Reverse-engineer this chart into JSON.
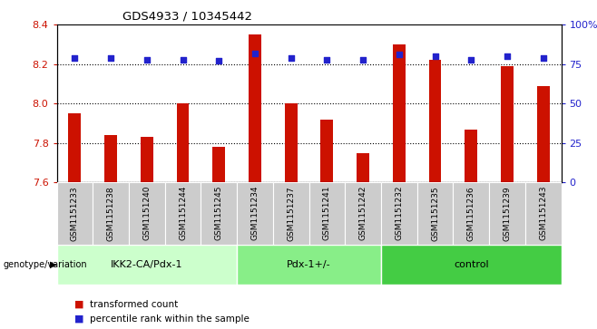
{
  "title": "GDS4933 / 10345442",
  "samples": [
    "GSM1151233",
    "GSM1151238",
    "GSM1151240",
    "GSM1151244",
    "GSM1151245",
    "GSM1151234",
    "GSM1151237",
    "GSM1151241",
    "GSM1151242",
    "GSM1151232",
    "GSM1151235",
    "GSM1151236",
    "GSM1151239",
    "GSM1151243"
  ],
  "red_values": [
    7.95,
    7.84,
    7.83,
    8.0,
    7.78,
    8.35,
    8.0,
    7.92,
    7.75,
    8.3,
    8.22,
    7.87,
    8.19,
    8.09
  ],
  "blue_values": [
    79,
    79,
    78,
    78,
    77,
    82,
    79,
    78,
    78,
    81,
    80,
    78,
    80,
    79
  ],
  "groups": [
    {
      "label": "IKK2-CA/Pdx-1",
      "start": 0,
      "end": 5,
      "color": "#ccffcc"
    },
    {
      "label": "Pdx-1+/-",
      "start": 5,
      "end": 9,
      "color": "#88ee88"
    },
    {
      "label": "control",
      "start": 9,
      "end": 14,
      "color": "#44cc44"
    }
  ],
  "ylim_left": [
    7.6,
    8.4
  ],
  "ylim_right": [
    0,
    100
  ],
  "yticks_left": [
    7.6,
    7.8,
    8.0,
    8.2,
    8.4
  ],
  "yticks_right": [
    0,
    25,
    50,
    75,
    100
  ],
  "ytick_labels_right": [
    "0",
    "25",
    "50",
    "75",
    "100%"
  ],
  "bar_color": "#cc1100",
  "dot_color": "#2222cc",
  "bar_bottom": 7.6,
  "left_tick_color": "#cc1100",
  "right_tick_color": "#2222cc",
  "legend_red": "transformed count",
  "legend_blue": "percentile rank within the sample",
  "bar_width": 0.35
}
